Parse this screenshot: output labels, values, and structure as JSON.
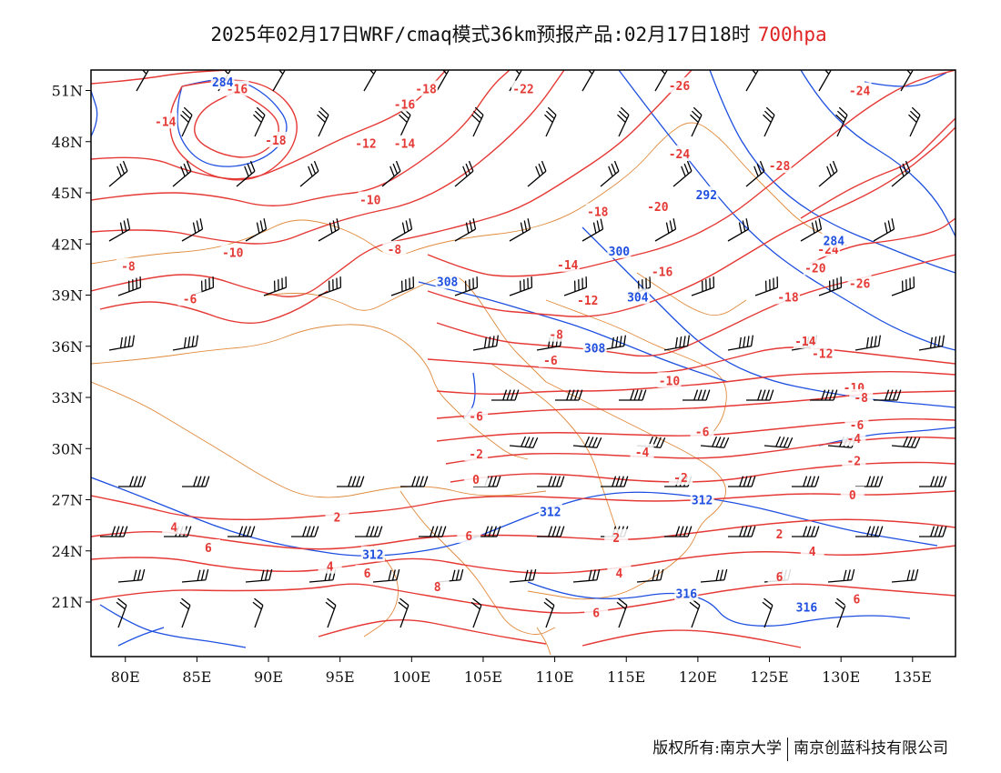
{
  "title": {
    "main": "2025年02月17日WRF/cmaq模式36km预报产品:02月17日18时",
    "level": "700hpa"
  },
  "colors": {
    "temperature": "#e53935",
    "height": "#1e4fe0",
    "border": "#e08a3c",
    "wind": "#000000"
  },
  "axes": {
    "lat_labels": [
      "51N",
      "48N",
      "45N",
      "42N",
      "39N",
      "36N",
      "33N",
      "30N",
      "27N",
      "24N",
      "21N"
    ],
    "lon_labels": [
      "80E",
      "85E",
      "90E",
      "95E",
      "100E",
      "105E",
      "110E",
      "115E",
      "120E",
      "125E",
      "130E",
      "135E"
    ]
  },
  "temperature_labels": [
    {
      "text": "-14",
      "lon": 82.8,
      "lat": 49.2
    },
    {
      "text": "-16",
      "lon": 87.8,
      "lat": 51.1
    },
    {
      "text": "-18",
      "lon": 90.5,
      "lat": 48.1
    },
    {
      "text": "-18",
      "lon": 101.0,
      "lat": 51.1
    },
    {
      "text": "-16",
      "lon": 99.5,
      "lat": 50.2
    },
    {
      "text": "-12",
      "lon": 96.8,
      "lat": 47.9
    },
    {
      "text": "-14",
      "lon": 99.5,
      "lat": 47.9
    },
    {
      "text": "-22",
      "lon": 107.8,
      "lat": 51.1
    },
    {
      "text": "-26",
      "lon": 118.7,
      "lat": 51.3
    },
    {
      "text": "-24",
      "lon": 131.3,
      "lat": 51.0
    },
    {
      "text": "-24",
      "lon": 118.7,
      "lat": 47.3
    },
    {
      "text": "-28",
      "lon": 125.7,
      "lat": 46.6
    },
    {
      "text": "-10",
      "lon": 97.1,
      "lat": 44.6
    },
    {
      "text": "-18",
      "lon": 113.0,
      "lat": 43.9
    },
    {
      "text": "-20",
      "lon": 117.2,
      "lat": 44.2
    },
    {
      "text": "-10",
      "lon": 87.5,
      "lat": 41.5
    },
    {
      "text": "-8",
      "lon": 80.2,
      "lat": 40.7
    },
    {
      "text": "-8",
      "lon": 98.8,
      "lat": 41.7
    },
    {
      "text": "-14",
      "lon": 110.9,
      "lat": 40.8
    },
    {
      "text": "-16",
      "lon": 117.5,
      "lat": 40.4
    },
    {
      "text": "-24",
      "lon": 129.1,
      "lat": 41.7
    },
    {
      "text": "-20",
      "lon": 128.2,
      "lat": 40.6
    },
    {
      "text": "-26",
      "lon": 131.3,
      "lat": 39.7
    },
    {
      "text": "-6",
      "lon": 84.5,
      "lat": 38.8
    },
    {
      "text": "-12",
      "lon": 112.3,
      "lat": 38.7
    },
    {
      "text": "-18",
      "lon": 126.3,
      "lat": 38.9
    },
    {
      "text": "-8",
      "lon": 110.1,
      "lat": 36.7
    },
    {
      "text": "-14",
      "lon": 127.5,
      "lat": 36.3
    },
    {
      "text": "-12",
      "lon": 128.7,
      "lat": 35.6
    },
    {
      "text": "-6",
      "lon": 109.7,
      "lat": 35.2
    },
    {
      "text": "-10",
      "lon": 118.0,
      "lat": 34.0
    },
    {
      "text": "-10",
      "lon": 130.9,
      "lat": 33.6
    },
    {
      "text": "-8",
      "lon": 131.4,
      "lat": 33.0
    },
    {
      "text": "-6",
      "lon": 104.5,
      "lat": 31.9
    },
    {
      "text": "-6",
      "lon": 131.1,
      "lat": 31.4
    },
    {
      "text": "-6",
      "lon": 120.3,
      "lat": 31.0
    },
    {
      "text": "-4",
      "lon": 130.9,
      "lat": 30.6
    },
    {
      "text": "-4",
      "lon": 116.1,
      "lat": 29.8
    },
    {
      "text": "-2",
      "lon": 104.5,
      "lat": 29.7
    },
    {
      "text": "-2",
      "lon": 130.9,
      "lat": 29.3
    },
    {
      "text": "0",
      "lon": 104.5,
      "lat": 28.2
    },
    {
      "text": "-2",
      "lon": 118.8,
      "lat": 28.3
    },
    {
      "text": "0",
      "lon": 130.8,
      "lat": 27.3
    },
    {
      "text": "2",
      "lon": 94.8,
      "lat": 26.0
    },
    {
      "text": "4",
      "lon": 83.4,
      "lat": 25.4
    },
    {
      "text": "2",
      "lon": 125.7,
      "lat": 25.0
    },
    {
      "text": "6",
      "lon": 104.0,
      "lat": 24.9
    },
    {
      "text": "2",
      "lon": 114.3,
      "lat": 24.8
    },
    {
      "text": "6",
      "lon": 85.8,
      "lat": 24.2
    },
    {
      "text": "4",
      "lon": 128.0,
      "lat": 24.0
    },
    {
      "text": "4",
      "lon": 94.3,
      "lat": 23.1
    },
    {
      "text": "4",
      "lon": 114.5,
      "lat": 22.7
    },
    {
      "text": "6",
      "lon": 96.9,
      "lat": 22.7
    },
    {
      "text": "6",
      "lon": 125.7,
      "lat": 22.5
    },
    {
      "text": "8",
      "lon": 101.8,
      "lat": 21.9
    },
    {
      "text": "6",
      "lon": 131.1,
      "lat": 21.2
    },
    {
      "text": "6",
      "lon": 112.9,
      "lat": 20.4
    }
  ],
  "height_labels": [
    {
      "text": "284",
      "lon": 86.8,
      "lat": 51.5
    },
    {
      "text": "292",
      "lon": 120.6,
      "lat": 44.9
    },
    {
      "text": "284",
      "lon": 129.5,
      "lat": 42.2
    },
    {
      "text": "300",
      "lon": 114.5,
      "lat": 41.6
    },
    {
      "text": "308",
      "lon": 102.5,
      "lat": 39.8
    },
    {
      "text": "304",
      "lon": 115.8,
      "lat": 38.9
    },
    {
      "text": "308",
      "lon": 112.8,
      "lat": 35.9
    },
    {
      "text": "312",
      "lon": 120.3,
      "lat": 27.0
    },
    {
      "text": "312",
      "lon": 109.7,
      "lat": 26.3
    },
    {
      "text": "312",
      "lon": 97.3,
      "lat": 23.8
    },
    {
      "text": "316",
      "lon": 119.2,
      "lat": 21.5
    },
    {
      "text": "316",
      "lon": 127.6,
      "lat": 20.7
    }
  ],
  "footer": {
    "left": "版权所有:南京大学",
    "right": "南京创蓝科技有限公司"
  }
}
